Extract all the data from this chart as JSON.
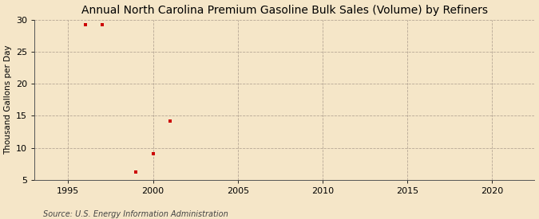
{
  "title": "Annual North Carolina Premium Gasoline Bulk Sales (Volume) by Refiners",
  "ylabel": "Thousand Gallons per Day",
  "source": "Source: U.S. Energy Information Administration",
  "x_data": [
    1996,
    1997,
    1999,
    2000,
    2001
  ],
  "y_data": [
    29.3,
    29.2,
    6.2,
    9.1,
    14.2
  ],
  "marker_color": "#cc0000",
  "marker": "s",
  "marker_size": 3.5,
  "xlim": [
    1993,
    2022.5
  ],
  "ylim": [
    5,
    30
  ],
  "yticks": [
    5,
    10,
    15,
    20,
    25,
    30
  ],
  "xticks": [
    1995,
    2000,
    2005,
    2010,
    2015,
    2020
  ],
  "background_color": "#f5e6c8",
  "plot_bg_color": "#f5e6c8",
  "grid_color": "#b0a090",
  "title_fontsize": 10,
  "label_fontsize": 7.5,
  "tick_fontsize": 8,
  "source_fontsize": 7
}
